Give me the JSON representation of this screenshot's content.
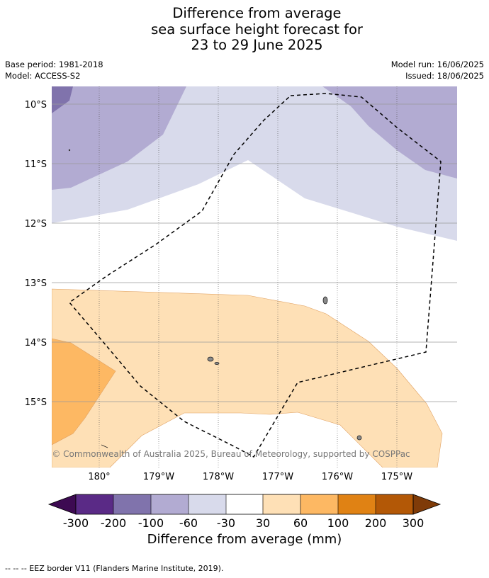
{
  "title": {
    "line1": "Difference from average",
    "line2": "sea surface height forecast for",
    "line3": "23 to 29 June 2025"
  },
  "meta_left": {
    "base_period": "Base period: 1981-2018",
    "model": "Model: ACCESS-S2"
  },
  "meta_right": {
    "model_run": "Model run: 16/06/2025",
    "issued": "Issued: 18/06/2025"
  },
  "map": {
    "lat_labels": [
      "10°S",
      "11°S",
      "12°S",
      "13°S",
      "14°S",
      "15°S"
    ],
    "lon_labels": [
      "180°",
      "179°W",
      "178°W",
      "177°W",
      "176°W",
      "175°W"
    ],
    "copyright": "© Commonwealth of Australia 2025, Bureau of Meteorology, supported by COSPPac",
    "colors": {
      "m300": "#3d0a52",
      "m200": "#5a2a86",
      "m100": "#8073ac",
      "m60": "#b2abd2",
      "m30": "#d8daeb",
      "zero": "#ffffff",
      "p30": "#fee0b6",
      "p60": "#fdb863",
      "p100": "#e08214",
      "p200": "#b35806",
      "p300": "#7f3b08"
    }
  },
  "colorbar": {
    "ticks": [
      "-300",
      "-200",
      "-100",
      "-60",
      "-30",
      "30",
      "60",
      "100",
      "200",
      "300"
    ],
    "label": "Difference from average (mm)"
  },
  "footer": "--  --  -- EEZ border V11 (Flanders Marine Institute, 2019)."
}
